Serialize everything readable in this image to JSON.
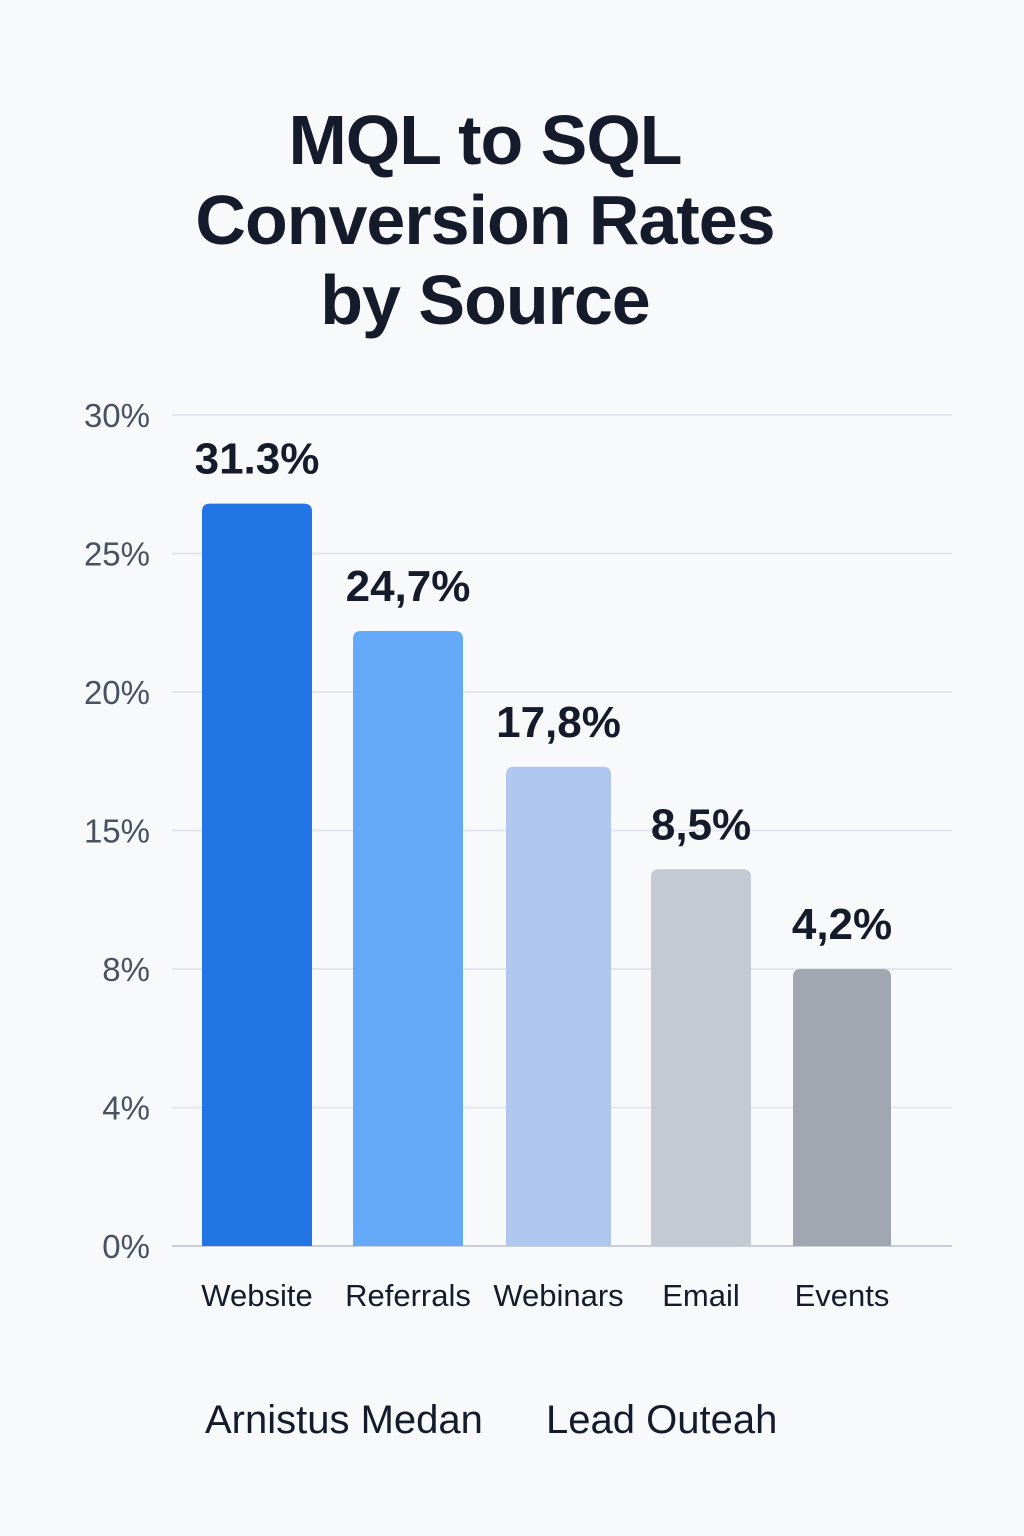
{
  "chart_data": {
    "type": "bar",
    "title_lines": [
      "MQL to SQL",
      "Conversion Rates",
      "by Source"
    ],
    "categories": [
      "Website",
      "Referrals",
      "Webinars",
      "Email",
      "Events"
    ],
    "values": [
      31.3,
      24.7,
      17.8,
      8.5,
      4.2
    ],
    "data_labels": [
      "31.3%",
      "24,7%",
      "17,8%",
      "8,5%",
      "4,2%"
    ],
    "bar_levels_axis_units": [
      26.8,
      22.2,
      17.3,
      13.6,
      10.0
    ],
    "y_ticks": [
      "0%",
      "4%",
      "8%",
      "15%",
      "20%",
      "25%",
      "30%"
    ],
    "ylim": [
      0,
      30
    ],
    "xlabel": "",
    "ylabel": "",
    "grid": true,
    "legend": "none",
    "colors": [
      "#2374e4",
      "#64aaf9",
      "#b0c8f0",
      "#c4c9d2",
      "#a1a6b0"
    ]
  },
  "footer": {
    "left": "Arnistus Medan",
    "right": "Lead Outeah"
  }
}
